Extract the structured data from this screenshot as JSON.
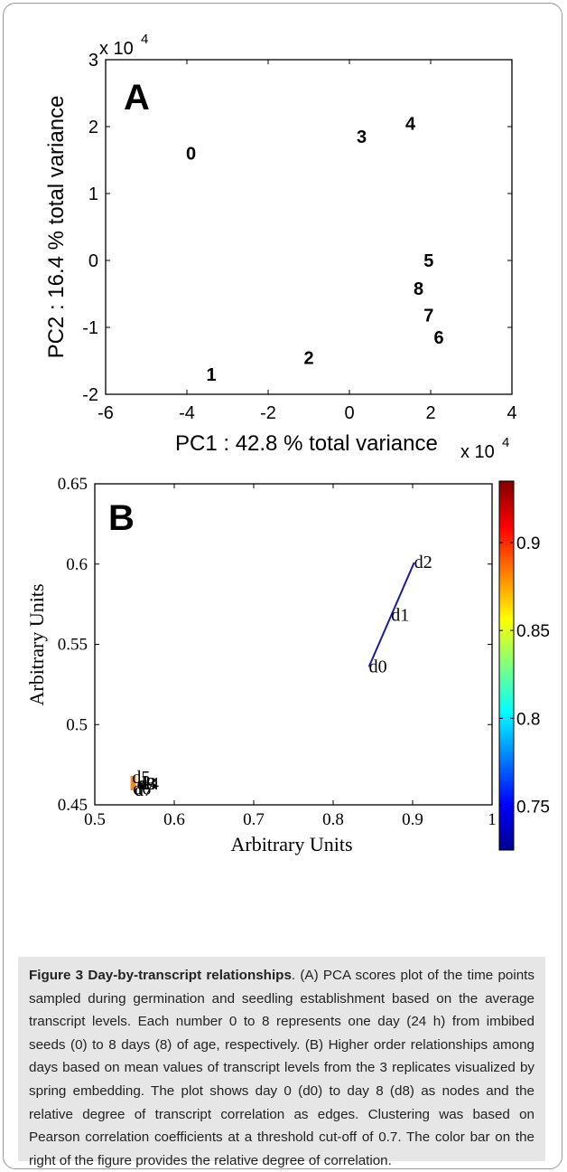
{
  "figure": {
    "caption_label": "Figure 3",
    "caption_title": "Day-by-transcript relationships",
    "caption_text": ". (A) PCA scores plot of the time points sampled during germination and seedling establishment based on the average transcript levels. Each number 0 to 8 represents one day (24 h) from imbibed seeds (0) to 8 days (8) of age, respectively. (B) Higher order relationships among days based on mean values of transcript levels from the 3 replicates visualized by spring embedding. The plot shows day 0 (d0) to day 8 (d8) as nodes and the relative degree of transcript correlation as edges. Clustering was based on Pearson correlation coefficients at a threshold cut-off of 0.7. The color bar on the right of the figure provides the relative degree of correlation."
  },
  "chart_data": [
    {
      "type": "scatter",
      "panel_label": "A",
      "xlabel": "PC1 : 42.8 % total variance",
      "ylabel": "PC2 : 16.4 % total variance",
      "x_multiplier": "x 10",
      "y_multiplier": "x 10",
      "multiplier_exponent": "4",
      "xlim": [
        -6,
        4
      ],
      "ylim": [
        -2,
        3
      ],
      "xticks": [
        "-6",
        "-4",
        "-2",
        "0",
        "2",
        "4"
      ],
      "yticks": [
        "-2",
        "-1",
        "0",
        "1",
        "2",
        "3"
      ],
      "points": [
        {
          "label": "0",
          "x": -3.9,
          "y": 1.6
        },
        {
          "label": "1",
          "x": -3.4,
          "y": -1.7
        },
        {
          "label": "2",
          "x": -1.0,
          "y": -1.45
        },
        {
          "label": "3",
          "x": 0.3,
          "y": 1.85
        },
        {
          "label": "4",
          "x": 1.5,
          "y": 2.05
        },
        {
          "label": "5",
          "x": 1.95,
          "y": 0.0
        },
        {
          "label": "8",
          "x": 1.7,
          "y": -0.42
        },
        {
          "label": "7",
          "x": 1.95,
          "y": -0.82
        },
        {
          "label": "6",
          "x": 2.2,
          "y": -1.15
        }
      ]
    },
    {
      "type": "scatter",
      "panel_label": "B",
      "xlabel": "Arbitrary Units",
      "ylabel": "Arbitrary Units",
      "xlim": [
        0.5,
        1.0
      ],
      "ylim": [
        0.45,
        0.65
      ],
      "xticks": [
        "0.5",
        "0.6",
        "0.7",
        "0.8",
        "0.9",
        "1"
      ],
      "yticks": [
        "0.45",
        "0.5",
        "0.55",
        "0.6",
        "0.65"
      ],
      "colorbar": {
        "ticks": [
          "0.75",
          "0.8",
          "0.85",
          "0.9"
        ],
        "range": [
          0.725,
          0.935
        ],
        "tick_values": [
          0.75,
          0.8,
          0.85,
          0.9
        ]
      },
      "nodes": [
        {
          "label": "d0",
          "x": 0.845,
          "y": 0.536
        },
        {
          "label": "d1",
          "x": 0.873,
          "y": 0.568
        },
        {
          "label": "d2",
          "x": 0.902,
          "y": 0.601
        },
        {
          "label": "d3",
          "x": 0.555,
          "y": 0.463
        },
        {
          "label": "d4",
          "x": 0.558,
          "y": 0.463
        },
        {
          "label": "d5",
          "x": 0.547,
          "y": 0.467
        },
        {
          "label": "d6",
          "x": 0.548,
          "y": 0.46
        },
        {
          "label": "d7",
          "x": 0.55,
          "y": 0.459
        },
        {
          "label": "d8",
          "x": 0.553,
          "y": 0.463
        }
      ],
      "edge_color": "#1a1aa0",
      "edges": [
        {
          "from": "d0",
          "to": "d2"
        }
      ]
    }
  ]
}
